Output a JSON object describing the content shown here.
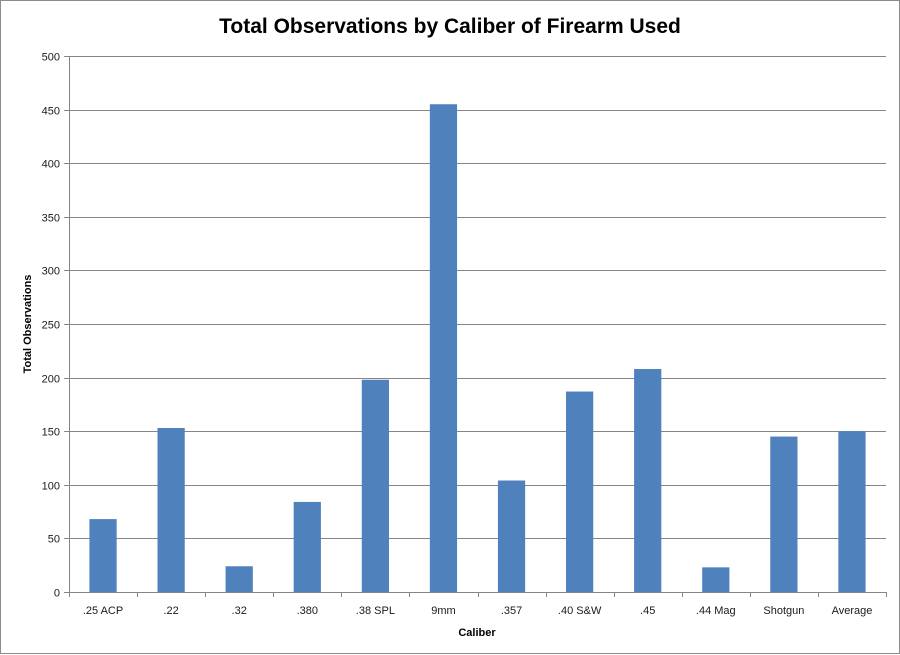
{
  "chart_data": {
    "type": "bar",
    "title": "Total Observations by Caliber of Firearm Used",
    "xlabel": "Caliber",
    "ylabel": "Total Observations",
    "categories": [
      ".25 ACP",
      ".22",
      ".32",
      ".380",
      ".38 SPL",
      "9mm",
      ".357",
      ".40 S&W",
      ".45",
      ".44 Mag",
      "Shotgun",
      "Average"
    ],
    "values": [
      68,
      153,
      24,
      84,
      198,
      455,
      104,
      187,
      208,
      23,
      145,
      150
    ],
    "ylim": [
      0,
      500
    ],
    "yticks": [
      0,
      50,
      100,
      150,
      200,
      250,
      300,
      350,
      400,
      450,
      500
    ],
    "grid": true,
    "legend": "none",
    "bar_color": "#4f81bd"
  }
}
